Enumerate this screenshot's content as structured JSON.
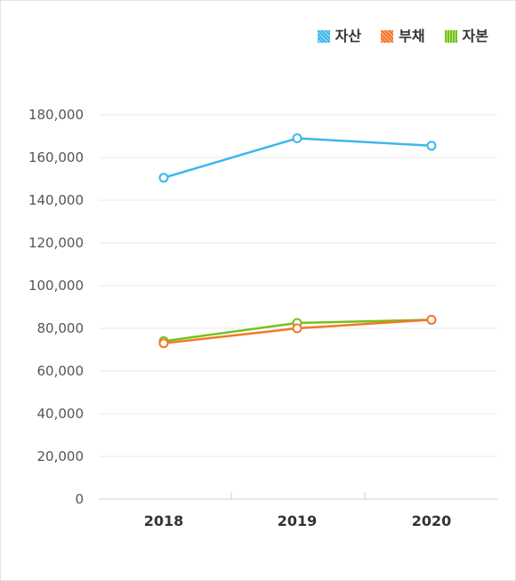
{
  "chart_data": {
    "type": "line",
    "categories": [
      "2018",
      "2019",
      "2020"
    ],
    "ylim": [
      0,
      180000
    ],
    "yticks": [
      0,
      20000,
      40000,
      60000,
      80000,
      100000,
      120000,
      140000,
      160000,
      180000
    ],
    "ytick_labels": [
      "0",
      "20,000",
      "40,000",
      "60,000",
      "80,000",
      "100,000",
      "120,000",
      "140,000",
      "160,000",
      "180,000"
    ],
    "grid": true,
    "legend_position": "top-right",
    "series": [
      {
        "name": "자산",
        "values": [
          150500,
          169000,
          165500
        ],
        "color": "#3db7ee"
      },
      {
        "name": "부채",
        "values": [
          73000,
          80000,
          84000
        ],
        "color": "#f4772b"
      },
      {
        "name": "자본",
        "values": [
          74000,
          82500,
          84000
        ],
        "color": "#74c219"
      }
    ]
  }
}
